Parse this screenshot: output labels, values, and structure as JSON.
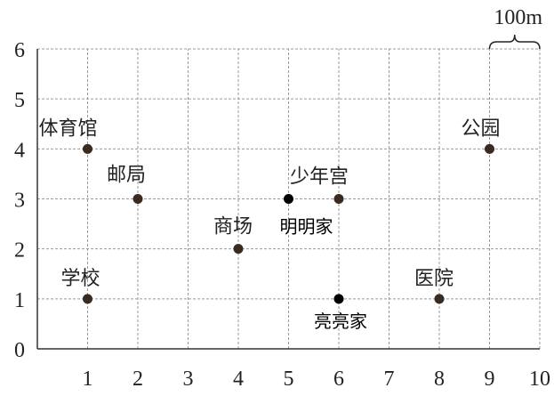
{
  "chart_data": {
    "type": "scatter",
    "xlim": [
      0,
      10
    ],
    "ylim": [
      0,
      6
    ],
    "grid": true,
    "x_ticks": [
      "1",
      "2",
      "3",
      "4",
      "5",
      "6",
      "7",
      "8",
      "9",
      "10"
    ],
    "y_ticks": [
      "0",
      "1",
      "2",
      "3",
      "4",
      "5",
      "6"
    ],
    "scale_label": "100m",
    "points": [
      {
        "label": "体育馆",
        "x": 1,
        "y": 4,
        "color": "#3a2a20"
      },
      {
        "label": "邮局",
        "x": 2,
        "y": 3,
        "color": "#3a2a20"
      },
      {
        "label": "学校",
        "x": 1,
        "y": 1,
        "color": "#3a2a20"
      },
      {
        "label": "商场",
        "x": 4,
        "y": 2,
        "color": "#3a2a20"
      },
      {
        "label": "明明家",
        "x": 5,
        "y": 3,
        "color": "#000000"
      },
      {
        "label": "少年宫",
        "x": 6,
        "y": 3,
        "color": "#3a2a20"
      },
      {
        "label": "亮亮家",
        "x": 6,
        "y": 1,
        "color": "#000000"
      },
      {
        "label": "医院",
        "x": 8,
        "y": 1,
        "color": "#3a2a20"
      },
      {
        "label": "公园",
        "x": 9,
        "y": 4,
        "color": "#3a2a20"
      }
    ]
  }
}
